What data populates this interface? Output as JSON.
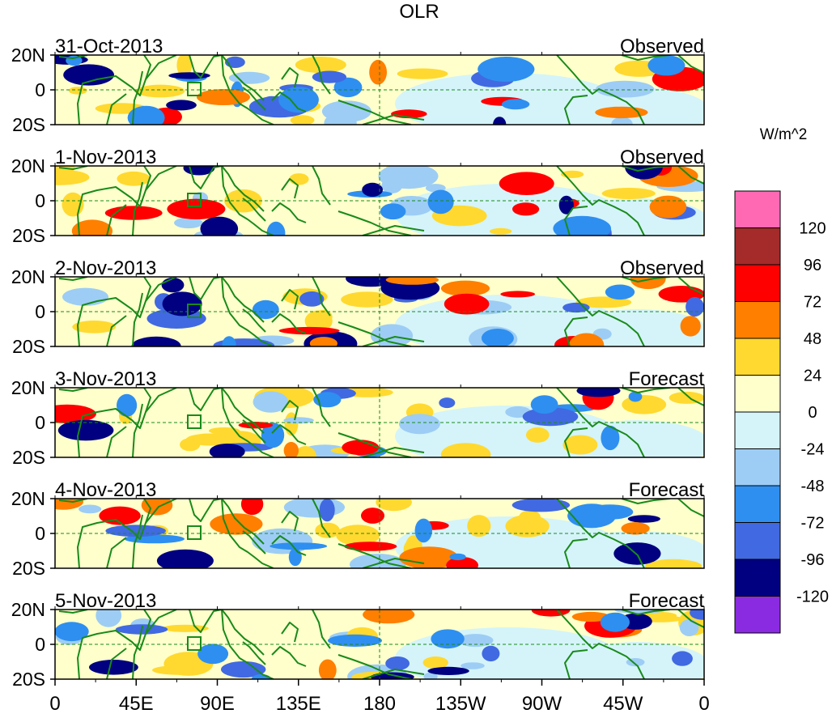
{
  "title": "OLR",
  "units": "W/m^2",
  "panels": [
    {
      "date": "31-Oct-2013",
      "kind": "Observed"
    },
    {
      "date": "1-Nov-2013",
      "kind": "Observed"
    },
    {
      "date": "2-Nov-2013",
      "kind": "Observed"
    },
    {
      "date": "3-Nov-2013",
      "kind": "Forecast"
    },
    {
      "date": "4-Nov-2013",
      "kind": "Forecast"
    },
    {
      "date": "5-Nov-2013",
      "kind": "Forecast"
    }
  ],
  "lat_labels": [
    "20N",
    "0",
    "20S"
  ],
  "lon_labels": [
    "0",
    "45E",
    "90E",
    "135E",
    "180",
    "135W",
    "90W",
    "45W",
    "0"
  ],
  "legend": {
    "labels": [
      "120",
      "96",
      "72",
      "48",
      "24",
      "0",
      "-24",
      "-48",
      "-72",
      "-96",
      "-120"
    ],
    "colors": [
      "#ff69b4",
      "#a52a2a",
      "#ff0000",
      "#ff7f00",
      "#ffd92f",
      "#ffffcc",
      "#d4f4fa",
      "#9dcdf5",
      "#2e8ff0",
      "#4169e1",
      "#000080",
      "#8a2be2"
    ]
  },
  "colors": {
    "coast": "#1a8a1a",
    "ref_line": "#1a8a1a"
  }
}
